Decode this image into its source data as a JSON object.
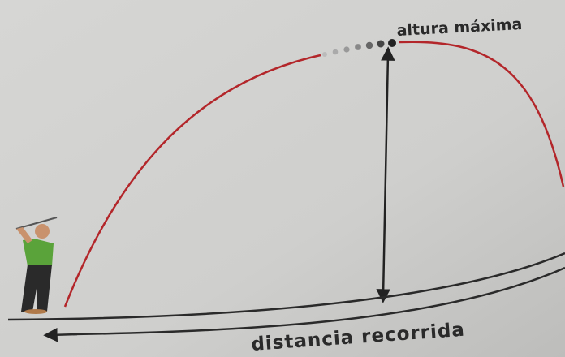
{
  "labels": {
    "max_height": "altura máxima",
    "distance": "distancia recorrida"
  }
}
